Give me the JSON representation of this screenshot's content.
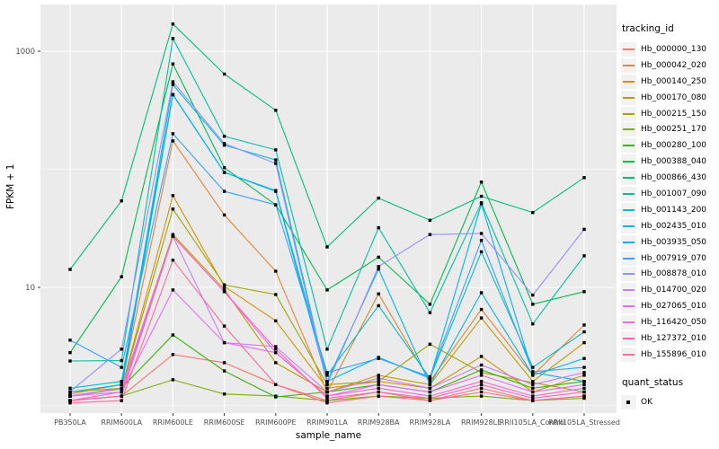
{
  "figure": {
    "panel_background": "#EBEBEB",
    "grid_color": "#FFFFFF",
    "axis_text_color": "#4D4D4D",
    "tick_color": "#333333",
    "point_color": "#000000",
    "legend_key_fill": "#F2F2F2"
  },
  "chart_data": {
    "type": "line",
    "title": "",
    "xlabel": "sample_name",
    "ylabel": "FPKM + 1",
    "y_scale": "log10",
    "ylim": [
      0.86,
      2400
    ],
    "y_major_ticks": [
      10,
      1000
    ],
    "y_minor_gridlines": [
      1,
      100
    ],
    "grid": "on",
    "legend_position": "right",
    "legend_title": "tracking_id",
    "point_shape": "filled-square",
    "categories": [
      "PB350LA",
      "RRIM600LA",
      "RRIM600LE",
      "RRIM600SE",
      "RRIM600PE",
      "RRIM901LA",
      "RRIM928BA",
      "RRIM928LA",
      "RRIM928LE",
      "RRII105LA_Control",
      "RRII105LA_Stressed"
    ],
    "series": [
      {
        "name": "Hb_000000_130",
        "color": "#F8766D",
        "values": [
          1.1,
          1.2,
          2.7,
          2.3,
          1.5,
          1.1,
          1.3,
          1.1,
          1.4,
          1.1,
          1.2
        ]
      },
      {
        "name": "Hb_000042_020",
        "color": "#EA8331",
        "values": [
          1.25,
          1.5,
          174,
          41,
          13.7,
          1.3,
          8.8,
          1.6,
          6.5,
          1.8,
          4.8
        ]
      },
      {
        "name": "Hb_000140_250",
        "color": "#D89000",
        "values": [
          1.2,
          1.4,
          60,
          10.2,
          5.2,
          1.4,
          1.6,
          1.4,
          2.6,
          1.3,
          1.8
        ]
      },
      {
        "name": "Hb_000170_080",
        "color": "#C09B00",
        "values": [
          1.2,
          1.38,
          28,
          9.6,
          2.3,
          1.3,
          1.8,
          1.5,
          5.5,
          1.6,
          3.4
        ]
      },
      {
        "name": "Hb_000215_150",
        "color": "#A3A500",
        "values": [
          1.3,
          1.4,
          46,
          10.5,
          8.7,
          1.5,
          1.6,
          3.3,
          1.9,
          1.56,
          1.3
        ]
      },
      {
        "name": "Hb_000251_170",
        "color": "#7CAE00",
        "values": [
          1.1,
          1.2,
          1.65,
          1.25,
          1.2,
          1.1,
          1.2,
          1.15,
          1.2,
          1.1,
          1.15
        ]
      },
      {
        "name": "Hb_000280_100",
        "color": "#39B600",
        "values": [
          1.2,
          1.4,
          3.95,
          1.96,
          1.18,
          1.3,
          1.5,
          1.3,
          2.0,
          1.4,
          1.6
        ]
      },
      {
        "name": "Hb_000388_040",
        "color": "#00BB4E",
        "values": [
          2.8,
          12.3,
          780,
          103,
          50,
          9.5,
          18,
          7.2,
          78,
          7.2,
          9.2
        ]
      },
      {
        "name": "Hb_000866_430",
        "color": "#00BF7D",
        "values": [
          14.2,
          54,
          1700,
          640,
          316,
          22,
          57,
          37,
          59,
          43,
          85
        ]
      },
      {
        "name": "Hb_001007_090",
        "color": "#00C1A3",
        "values": [
          2.38,
          2.4,
          1280,
          190,
          146,
          3.0,
          32,
          6.1,
          52,
          4.9,
          18.5
        ]
      },
      {
        "name": "Hb_001143_200",
        "color": "#00BFC4",
        "values": [
          1.4,
          1.6,
          430,
          94,
          66,
          1.8,
          7.0,
          1.7,
          20,
          2.1,
          4.2
        ]
      },
      {
        "name": "Hb_002435_010",
        "color": "#00BAE0",
        "values": [
          1.3,
          1.5,
          520,
          160,
          120,
          1.6,
          14.3,
          1.5,
          9.0,
          1.8,
          2.5
        ]
      },
      {
        "name": "Hb_003935_050",
        "color": "#00B0F6",
        "values": [
          1.2,
          1.4,
          427,
          94,
          65,
          1.6,
          2.55,
          1.7,
          51,
          1.9,
          1.6
        ]
      },
      {
        "name": "Hb_007919_070",
        "color": "#35A2FF",
        "values": [
          3.57,
          2.1,
          200,
          65,
          50,
          1.9,
          2.5,
          1.75,
          25,
          1.93,
          2.1
        ]
      },
      {
        "name": "Hb_008878_010",
        "color": "#9590FF",
        "values": [
          1.31,
          3.0,
          551,
          165,
          112,
          1.5,
          15,
          28,
          28.6,
          8.6,
          31
        ]
      },
      {
        "name": "Hb_014700_020",
        "color": "#C77CFF",
        "values": [
          1.2,
          1.4,
          27,
          3.4,
          3.15,
          1.3,
          1.7,
          1.4,
          2.2,
          1.5,
          1.9
        ]
      },
      {
        "name": "Hb_027065_010",
        "color": "#E76BF3",
        "values": [
          1.2,
          1.3,
          9.5,
          3.4,
          2.8,
          1.2,
          1.5,
          1.3,
          1.8,
          1.3,
          1.5
        ]
      },
      {
        "name": "Hb_116420_050",
        "color": "#FA62DB",
        "values": [
          1.1,
          1.3,
          27,
          9.2,
          2.8,
          1.2,
          1.4,
          1.2,
          1.6,
          1.2,
          1.4
        ]
      },
      {
        "name": "Hb_127372_010",
        "color": "#FF62BC",
        "values": [
          1.1,
          1.2,
          27,
          9.2,
          3.0,
          1.15,
          1.3,
          1.15,
          1.5,
          1.15,
          1.3
        ]
      },
      {
        "name": "Hb_155896_010",
        "color": "#FF6A98",
        "values": [
          1.05,
          1.1,
          17,
          4.7,
          1.5,
          1.05,
          1.2,
          1.1,
          1.3,
          1.1,
          1.2
        ]
      }
    ],
    "quant_legend": {
      "title": "quant_status",
      "items": [
        "OK"
      ]
    }
  }
}
